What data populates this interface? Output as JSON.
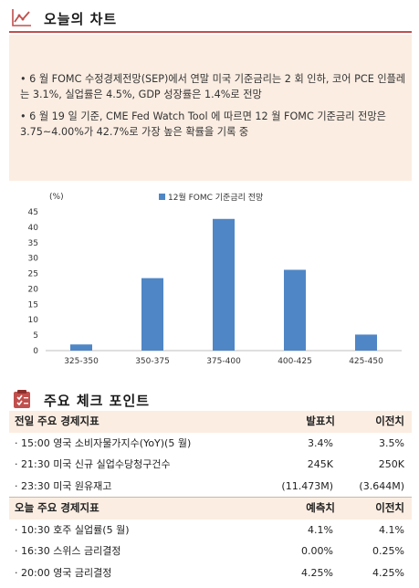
{
  "section1": {
    "title": "오늘의 차트",
    "bullets": [
      "• 6 월 FOMC 수정경제전망(SEP)에서 연말 미국 기준금리는 2 회 인하, 코어 PCE 인플레는 3.1%, 실업률은 4.5%, GDP 성장률은 1.4%로 전망",
      "• 6 월 19 일 기준, CME Fed Watch Tool 에 따르면 12 월 FOMC 기준금리 전망은 3.75~4.00%가 42.7%로 가장 높은 확률을 기록 중"
    ]
  },
  "chart_data": {
    "type": "bar",
    "unit_label": "(%)",
    "legend": "12월 FOMC 기준금리 전망",
    "categories": [
      "325-350",
      "350-375",
      "375-400",
      "400-425",
      "425-450"
    ],
    "values": [
      2,
      23.5,
      42.7,
      26.2,
      5.2
    ],
    "yticks": [
      0,
      5,
      10,
      15,
      20,
      25,
      30,
      35,
      40,
      45
    ],
    "ylim": [
      0,
      45
    ],
    "bar_color": "#4f86c6",
    "grid": false
  },
  "section2": {
    "title": "주요 체크 포인트",
    "yesterday": {
      "header": [
        "전일 주요 경제지표",
        "발표치",
        "이전치"
      ],
      "rows": [
        [
          "· 15:00 영국 소비자물가지수(YoY)(5 월)",
          "3.4%",
          "3.5%"
        ],
        [
          "· 21:30 미국 신규 실업수당청구건수",
          "245K",
          "250K"
        ],
        [
          "· 23:30 미국 원유재고",
          "(11.473M)",
          "(3.644M)"
        ]
      ]
    },
    "today": {
      "header": [
        "오늘 주요 경제지표",
        "예측치",
        "이전치"
      ],
      "rows": [
        [
          "· 10:30 호주 실업률(5 월)",
          "4.1%",
          "4.1%"
        ],
        [
          "· 16:30 스위스 금리결정",
          "0.00%",
          "0.25%"
        ],
        [
          "· 20:00 영국 금리결정",
          "4.25%",
          "4.25%"
        ]
      ]
    }
  },
  "colors": {
    "accent": "#c0504d",
    "panel": "#fbede2",
    "bar": "#4f86c6"
  }
}
